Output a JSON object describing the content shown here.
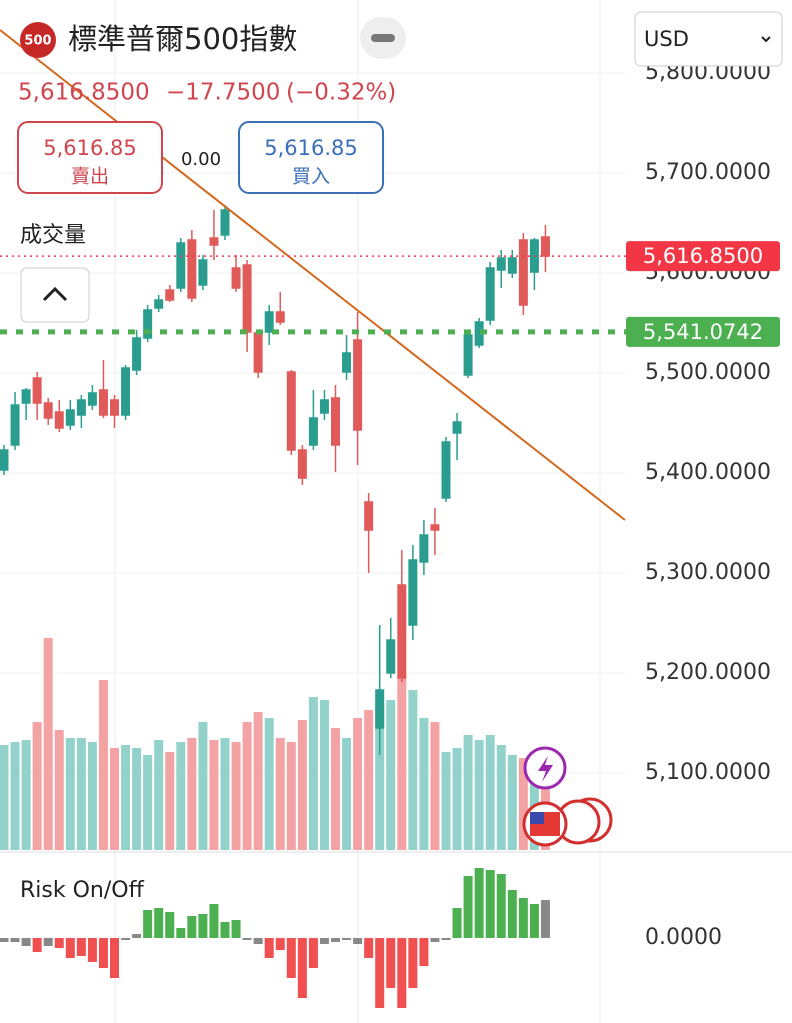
{
  "header": {
    "badge": "500",
    "title": "標準普爾500指數",
    "price": "5,616.8500",
    "change": "−17.7500",
    "change_pct": "(−0.32%)",
    "sell_price": "5,616.85",
    "sell": "賣出",
    "spread": "0.00",
    "buy_price": "5,616.85",
    "buy": "買入",
    "currency": "USD",
    "volume_label": "成交量"
  },
  "chart_data": [
    {
      "type": "candlestick",
      "up_color": "#2a9d8f",
      "down_color": "#e05a5a",
      "volume_up_color": "#93d2ca",
      "volume_down_color": "#f3a3a3",
      "open": [
        5403,
        5428,
        5470,
        5495,
        5470,
        5461,
        5448,
        5458,
        5468,
        5483,
        5473,
        5458,
        5503,
        5535,
        5565,
        5583,
        5585,
        5633,
        5588,
        5635,
        5638,
        5605,
        5608,
        5540,
        5541,
        5561,
        5501,
        5423,
        5428,
        5460,
        5475,
        5501,
        5533,
        5371,
        5145,
        5200,
        5288,
        5248,
        5311,
        5348,
        5375,
        5440,
        5498,
        5528,
        5553,
        5603,
        5600,
        5633,
        5601,
        5636
      ],
      "close": [
        5423,
        5468,
        5483,
        5470,
        5455,
        5445,
        5463,
        5473,
        5480,
        5458,
        5458,
        5505,
        5535,
        5563,
        5573,
        5573,
        5630,
        5575,
        5613,
        5628,
        5663,
        5585,
        5541,
        5501,
        5561,
        5551,
        5423,
        5395,
        5455,
        5473,
        5428,
        5520,
        5443,
        5343,
        5183,
        5233,
        5195,
        5313,
        5338,
        5343,
        5431,
        5451,
        5538,
        5551,
        5605,
        5615,
        5615,
        5568,
        5633,
        5617
      ],
      "high": [
        5428,
        5481,
        5485,
        5501,
        5475,
        5473,
        5473,
        5478,
        5488,
        5513,
        5478,
        5508,
        5543,
        5568,
        5578,
        5588,
        5635,
        5643,
        5618,
        5663,
        5668,
        5618,
        5613,
        5543,
        5568,
        5581,
        5503,
        5428,
        5483,
        5483,
        5488,
        5538,
        5561,
        5380,
        5248,
        5255,
        5323,
        5328,
        5353,
        5365,
        5436,
        5460,
        5543,
        5555,
        5611,
        5623,
        5623,
        5640,
        5635,
        5648
      ],
      "low": [
        5398,
        5423,
        5453,
        5453,
        5448,
        5441,
        5443,
        5445,
        5463,
        5455,
        5445,
        5453,
        5498,
        5531,
        5561,
        5571,
        5581,
        5571,
        5583,
        5613,
        5633,
        5581,
        5521,
        5495,
        5528,
        5548,
        5418,
        5388,
        5423,
        5453,
        5401,
        5493,
        5408,
        5300,
        5118,
        5195,
        5191,
        5233,
        5298,
        5318,
        5371,
        5413,
        5495,
        5525,
        5548,
        5585,
        5595,
        5558,
        5583,
        5601
      ],
      "volume": [
        105,
        108,
        110,
        128,
        212,
        120,
        112,
        112,
        108,
        170,
        102,
        105,
        102,
        95,
        110,
        98,
        108,
        112,
        128,
        110,
        112,
        108,
        128,
        138,
        132,
        112,
        108,
        130,
        153,
        150,
        122,
        112,
        132,
        140,
        145,
        150,
        175,
        160,
        132,
        128,
        98,
        102,
        115,
        110,
        115,
        105,
        95,
        92,
        98,
        90
      ],
      "vlim": [
        0,
        790
      ],
      "ylim": [
        5023,
        5813
      ],
      "yticks": [
        {
          "value": 5100,
          "label": "5,100.0000"
        },
        {
          "value": 5200,
          "label": "5,200.0000"
        },
        {
          "value": 5300,
          "label": "5,300.0000"
        },
        {
          "value": 5400,
          "label": "5,400.0000"
        },
        {
          "value": 5500,
          "label": "5,500.0000"
        },
        {
          "value": 5600,
          "label": "5,600.0000"
        },
        {
          "value": 5700,
          "label": "5,700.0000"
        },
        {
          "value": 5800,
          "label": "5,800.0000"
        }
      ],
      "price_lines": [
        {
          "value": 5616.85,
          "label": "5,616.8500",
          "color": "#f23645"
        },
        {
          "value": 5541.0742,
          "label": "5,541.0742",
          "color": "#4caf50"
        }
      ]
    },
    {
      "type": "histogram",
      "title": "Risk On/Off",
      "values": [
        -4,
        -4,
        -8,
        -14,
        -8,
        -10,
        -20,
        -18,
        -24,
        -30,
        -40,
        -2,
        4,
        28,
        30,
        26,
        10,
        22,
        24,
        34,
        16,
        18,
        -2,
        -6,
        -20,
        -12,
        -40,
        -60,
        -30,
        -6,
        -4,
        -2,
        -6,
        -20,
        -70,
        -50,
        -70,
        -50,
        -28,
        -4,
        -2,
        30,
        62,
        70,
        68,
        64,
        48,
        40,
        34,
        38
      ],
      "colors": [
        "#888888",
        "#888888",
        "#888888",
        "#f05050",
        "#888888",
        "#f05050",
        "#f05050",
        "#f05050",
        "#f05050",
        "#f05050",
        "#f05050",
        "#888888",
        "#888888",
        "#4caf50",
        "#4caf50",
        "#4caf50",
        "#4caf50",
        "#4caf50",
        "#4caf50",
        "#4caf50",
        "#4caf50",
        "#4caf50",
        "#888888",
        "#888888",
        "#f05050",
        "#f05050",
        "#f05050",
        "#f05050",
        "#f05050",
        "#888888",
        "#888888",
        "#888888",
        "#888888",
        "#f05050",
        "#f05050",
        "#f05050",
        "#f05050",
        "#f05050",
        "#f05050",
        "#888888",
        "#888888",
        "#4caf50",
        "#4caf50",
        "#4caf50",
        "#4caf50",
        "#4caf50",
        "#4caf50",
        "#4caf50",
        "#4caf50",
        "#888888"
      ],
      "ylim": [
        -85,
        83
      ],
      "yticks": [
        {
          "value": 0,
          "label": "0.0000"
        }
      ]
    }
  ]
}
